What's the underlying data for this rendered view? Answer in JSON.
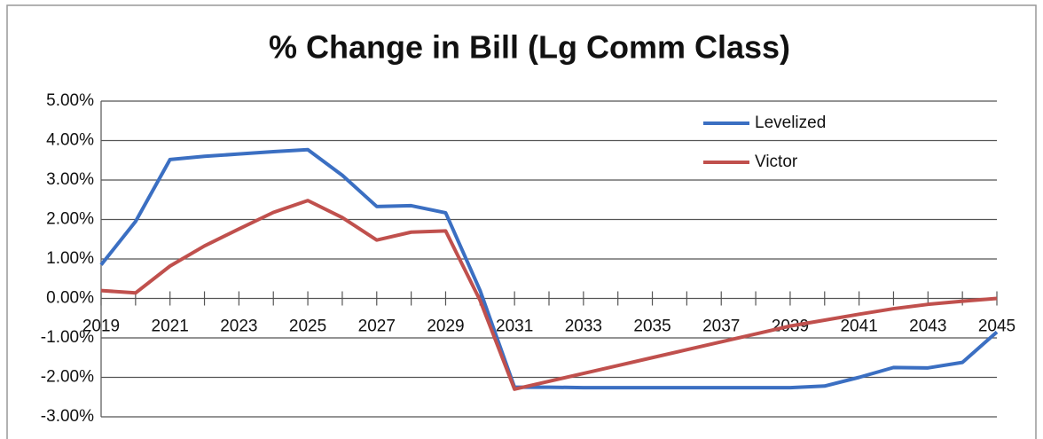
{
  "chart_data": {
    "type": "line",
    "title": "% Change in Bill (Lg Comm Class)",
    "x": [
      2019,
      2020,
      2021,
      2022,
      2023,
      2024,
      2025,
      2026,
      2027,
      2028,
      2029,
      2030,
      2031,
      2032,
      2033,
      2034,
      2035,
      2036,
      2037,
      2038,
      2039,
      2040,
      2041,
      2042,
      2043,
      2044,
      2045
    ],
    "series": [
      {
        "name": "Levelized",
        "color": "#3b6fc2",
        "values": [
          0.85,
          1.95,
          3.52,
          3.6,
          3.66,
          3.72,
          3.77,
          3.12,
          2.33,
          2.35,
          2.17,
          0.2,
          -2.25,
          -2.25,
          -2.26,
          -2.26,
          -2.26,
          -2.26,
          -2.26,
          -2.26,
          -2.26,
          -2.22,
          -2.0,
          -1.75,
          -1.76,
          -1.62,
          -0.85
        ]
      },
      {
        "name": "Victor",
        "color": "#c0504d",
        "values": [
          0.2,
          0.14,
          0.82,
          1.33,
          1.76,
          2.18,
          2.48,
          2.05,
          1.48,
          1.68,
          1.71,
          -0.05,
          -2.3,
          -2.1,
          -1.9,
          -1.7,
          -1.5,
          -1.3,
          -1.1,
          -0.9,
          -0.7,
          -0.55,
          -0.4,
          -0.26,
          -0.15,
          -0.07,
          0.0
        ]
      }
    ],
    "xlim": [
      2019,
      2045
    ],
    "xticks": [
      2019,
      2021,
      2023,
      2025,
      2027,
      2029,
      2031,
      2033,
      2035,
      2037,
      2039,
      2041,
      2043,
      2045
    ],
    "ylim": [
      -3,
      5
    ],
    "yticks": [
      {
        "value": -3,
        "label": "-3.00%"
      },
      {
        "value": -2,
        "label": "-2.00%"
      },
      {
        "value": -1,
        "label": "-1.00%"
      },
      {
        "value": 0,
        "label": "0.00%"
      },
      {
        "value": 1,
        "label": "1.00%"
      },
      {
        "value": 2,
        "label": "2.00%"
      },
      {
        "value": 3,
        "label": "3.00%"
      },
      {
        "value": 4,
        "label": "4.00%"
      },
      {
        "value": 5,
        "label": "5.00%"
      }
    ],
    "grid": true,
    "legend": "upper right"
  }
}
